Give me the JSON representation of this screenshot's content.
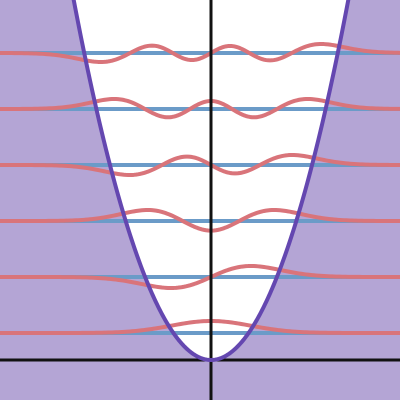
{
  "diagram": {
    "type": "quantum-harmonic-oscillator-wavefunctions",
    "potential": {
      "form": "parabola",
      "fill_color": "#B4A5D5",
      "line_color": "#6447B0"
    },
    "energy_levels": {
      "count": 6,
      "line_color": "#6B9BC8"
    },
    "wavefunctions": {
      "count": 6,
      "line_color": "#D9747A",
      "node_counts": [
        0,
        1,
        2,
        3,
        4,
        5
      ]
    },
    "axes": {
      "color": "#111111",
      "tick_labels_visible": false
    }
  }
}
